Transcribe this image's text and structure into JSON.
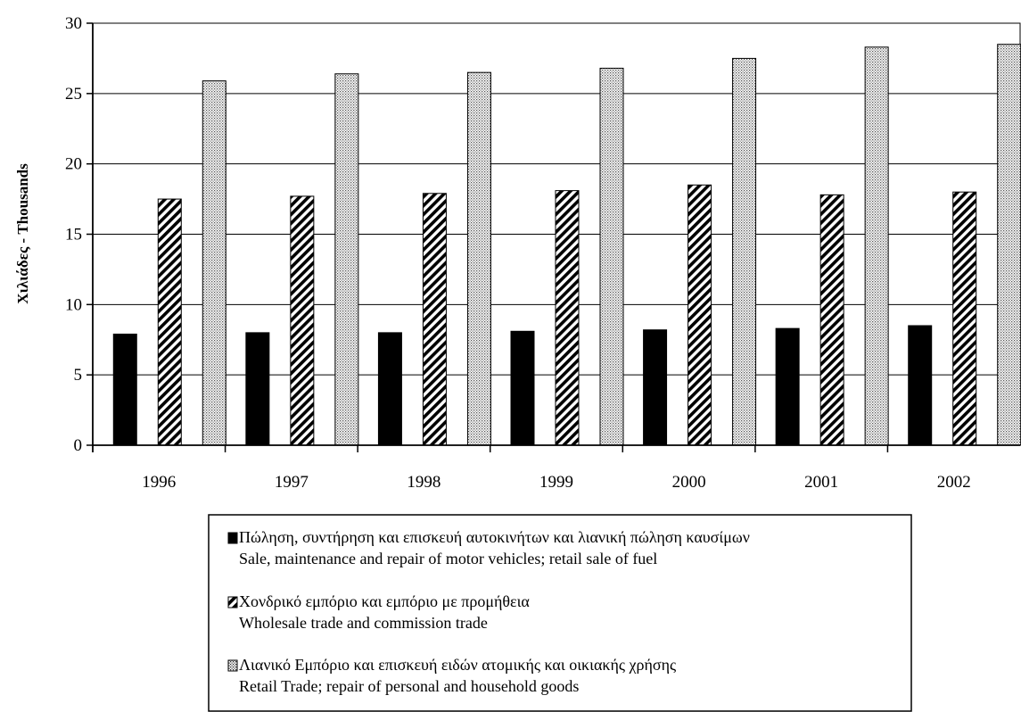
{
  "chart_data": {
    "type": "bar",
    "ylabel": "Χιλιάδες - Thousands",
    "ylim": [
      0,
      30
    ],
    "yticks": [
      0,
      5,
      10,
      15,
      20,
      25,
      30
    ],
    "grid": true,
    "legend_position": "bottom",
    "categories": [
      "1996",
      "1997",
      "1998",
      "1999",
      "2000",
      "2001",
      "2002"
    ],
    "series": [
      {
        "name": "Πώληση, συντήρηση και επισκευή αυτοκινήτων και λιανική πώληση καυσίμων",
        "name_en": "Sale, maintenance and repair of motor vehicles; retail sale of fuel",
        "pattern": "solid-black",
        "values": [
          7.9,
          8.0,
          8.0,
          8.1,
          8.2,
          8.3,
          8.5
        ]
      },
      {
        "name": "Χονδρικό εμπόριο και εμπόριο με προμήθεια",
        "name_en": "Wholesale trade and commission trade",
        "pattern": "diagonal-hatch",
        "values": [
          17.5,
          17.7,
          17.9,
          18.1,
          18.5,
          17.8,
          18.0
        ]
      },
      {
        "name": "Λιανικό Εμπόριο και επισκευή ειδών ατομικής και οικιακής χρήσης",
        "name_en": "Retail Trade; repair of personal and household goods",
        "pattern": "dotted",
        "values": [
          25.9,
          26.4,
          26.5,
          26.8,
          27.5,
          28.3,
          28.5
        ]
      }
    ]
  }
}
